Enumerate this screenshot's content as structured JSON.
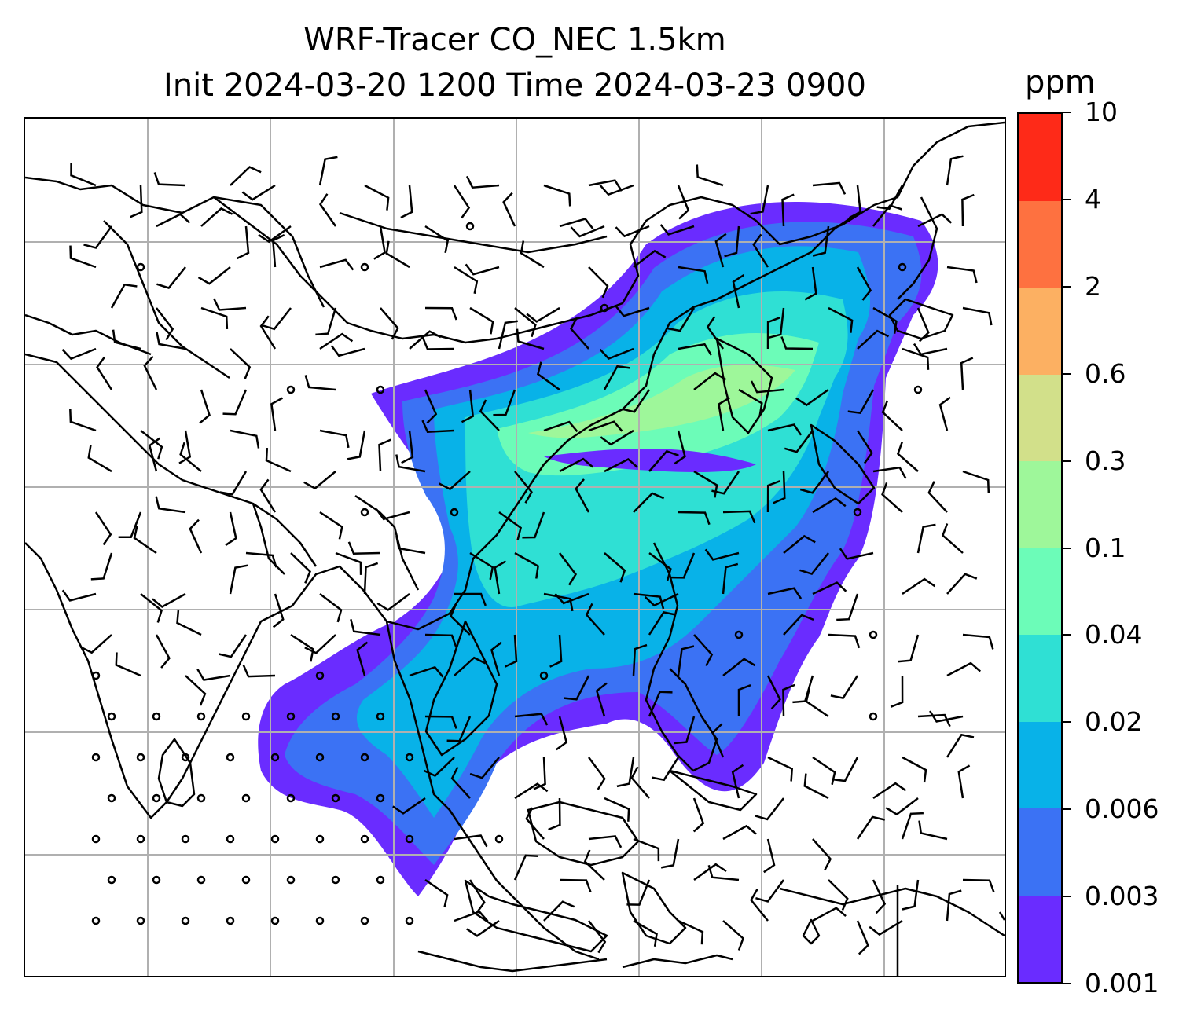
{
  "title_line1": "WRF-Tracer CO_NEC 1.5km",
  "title_line2": "Init 2024-03-20 1200 Time 2024-03-23 0900",
  "colorbar": {
    "unit": "ppm",
    "ticks": [
      "0.001",
      "0.003",
      "0.006",
      "0.02",
      "0.04",
      "0.1",
      "0.3",
      "0.6",
      "2",
      "4",
      "10"
    ],
    "colors": [
      "#6a2cff",
      "#3b72f4",
      "#08b2e8",
      "#2fe0d4",
      "#6cfcb8",
      "#9ef79a",
      "#d2e08a",
      "#fcb062",
      "#fe7140",
      "#fe2a18"
    ]
  },
  "map": {
    "gridlines": true,
    "layers": [
      "coastlines",
      "country-borders",
      "co-concentration-fill",
      "wind-barbs"
    ]
  }
}
